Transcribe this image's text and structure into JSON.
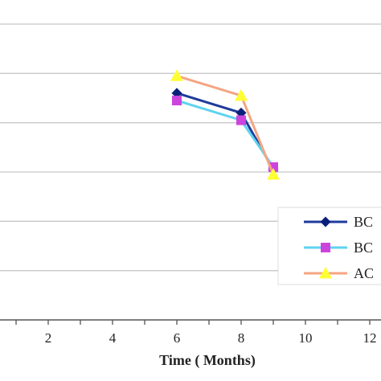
{
  "chart_data": {
    "type": "line",
    "xlabel": "Time ( Months)",
    "ylabel": "",
    "x_ticks": [
      2,
      4,
      6,
      8,
      10,
      12
    ],
    "xlim": [
      0,
      14
    ],
    "ylim": [
      0,
      6
    ],
    "grid": true,
    "legend_position": "right",
    "series": [
      {
        "name": "BC",
        "color": "#1f3b9c",
        "marker": "diamond",
        "x": [
          6,
          8,
          9
        ],
        "y": [
          4.6,
          4.2,
          3.05
        ]
      },
      {
        "name": "BC",
        "color": "#5fd3f0",
        "marker": "square",
        "x": [
          6,
          8,
          9
        ],
        "y": [
          4.45,
          4.05,
          3.1
        ]
      },
      {
        "name": "AC",
        "color": "#f4a582",
        "marker": "triangle",
        "marker_color": "#ffff33",
        "x": [
          6,
          8,
          9
        ],
        "y": [
          4.95,
          4.55,
          2.95
        ]
      }
    ]
  }
}
